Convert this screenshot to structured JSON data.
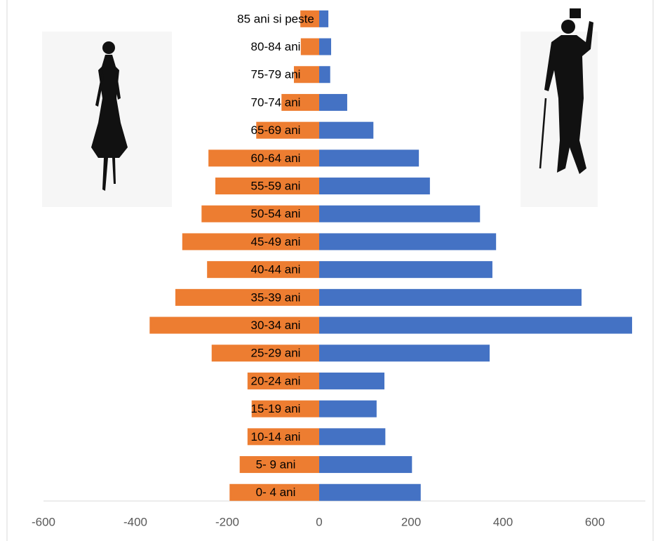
{
  "chart_data": {
    "type": "bar",
    "orientation": "horizontal",
    "categories": [
      "0- 4 ani",
      "5- 9 ani",
      "10-14 ani",
      "15-19 ani",
      "20-24 ani",
      "25-29 ani",
      "30-34 ani",
      "35-39 ani",
      "40-44 ani",
      "45-49 ani",
      "50-54 ani",
      "55-59 ani",
      "60-64 ani",
      "65-69 ani",
      "70-74 ani",
      "75-79 ani",
      "80-84 ani",
      "85 ani si peste"
    ],
    "series": [
      {
        "color": "#ed7d31",
        "values": [
          -195,
          -173,
          -156,
          -147,
          -156,
          -234,
          -369,
          -313,
          -244,
          -298,
          -256,
          -226,
          -241,
          -137,
          -82,
          -55,
          -40,
          -41
        ]
      },
      {
        "color": "#4472c4",
        "values": [
          221,
          202,
          144,
          125,
          142,
          371,
          681,
          571,
          377,
          385,
          350,
          241,
          217,
          118,
          61,
          24,
          26,
          20
        ]
      }
    ],
    "xlim": [
      -600,
      700
    ],
    "xticks": [
      -600,
      -400,
      -200,
      0,
      200,
      400,
      600
    ],
    "grid": false
  }
}
